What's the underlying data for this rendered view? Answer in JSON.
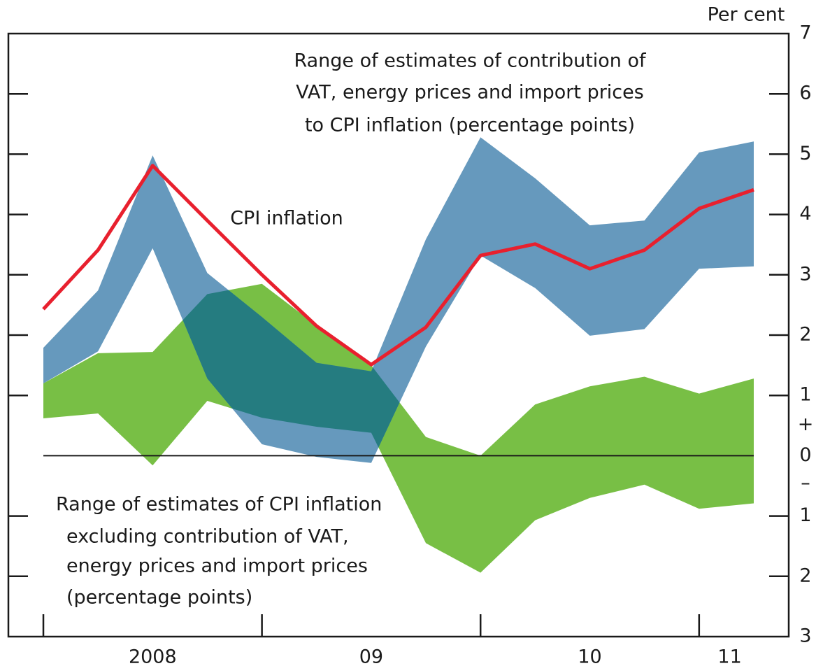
{
  "chart_data": {
    "type": "band-line",
    "y_axis_label": "Per cent",
    "x": [
      2008,
      2008.25,
      2008.5,
      2008.75,
      2009,
      2009.25,
      2009.5,
      2009.75,
      2010,
      2010.25,
      2010.5,
      2010.75,
      2011,
      2011.25
    ],
    "xlim": [
      2007.84,
      2011.41
    ],
    "xticks": [
      2008,
      2009,
      2010,
      2011
    ],
    "xtick_labels": [
      {
        "value": 2008.5,
        "label": "2008"
      },
      {
        "value": 2009.5,
        "label": "09"
      },
      {
        "value": 2010.5,
        "label": "10"
      },
      {
        "value": 2011.14,
        "label": "11"
      }
    ],
    "ylim": [
      -3,
      7
    ],
    "yticks": [
      {
        "value": -3,
        "label": "3"
      },
      {
        "value": -2,
        "label": "2"
      },
      {
        "value": -1,
        "label": "1"
      },
      0,
      1,
      2,
      3,
      4,
      5,
      6,
      7
    ],
    "sign_plus": "+",
    "sign_minus": "–",
    "bands": [
      {
        "label": [
          "Range of estimates of CPI inflation",
          "excluding contribution of VAT,",
          "energy prices and import prices",
          "(percentage points)"
        ],
        "color": "#78bf45",
        "upper": [
          1.2,
          1.7,
          1.72,
          2.68,
          2.85,
          2.16,
          1.5,
          0.31,
          0.0,
          0.85,
          1.15,
          1.31,
          1.03,
          1.28
        ],
        "lower": [
          0.62,
          0.7,
          -0.16,
          0.91,
          0.63,
          0.48,
          0.38,
          -1.45,
          -1.94,
          -1.07,
          -0.7,
          -0.48,
          -0.88,
          -0.79
        ]
      },
      {
        "label": [
          "Range of estimates of contribution of",
          "VAT, energy prices and import prices",
          "to CPI inflation (percentage points)"
        ],
        "color": "#6699bd",
        "overlap_color": "#257c80",
        "upper": [
          1.79,
          2.74,
          4.98,
          3.03,
          2.3,
          1.54,
          1.4,
          3.59,
          5.28,
          4.6,
          3.82,
          3.9,
          5.03,
          5.21
        ],
        "lower": [
          1.2,
          1.73,
          3.44,
          1.28,
          0.19,
          -0.02,
          -0.12,
          1.81,
          3.32,
          2.78,
          1.99,
          2.1,
          3.1,
          3.14
        ]
      }
    ],
    "line": {
      "name": "CPI inflation",
      "color": "#e8202e",
      "values": [
        2.43,
        3.41,
        4.81,
        3.9,
        3.0,
        2.15,
        1.51,
        2.13,
        3.32,
        3.51,
        3.1,
        3.41,
        4.1,
        4.41
      ]
    }
  }
}
